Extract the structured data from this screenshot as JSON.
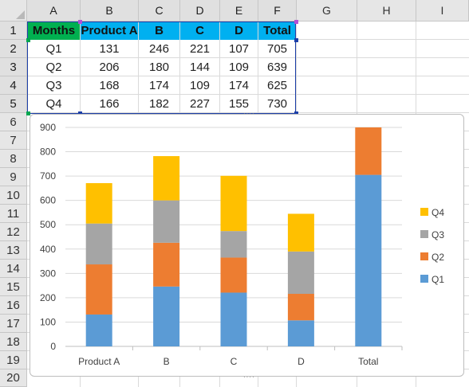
{
  "columns": [
    "A",
    "B",
    "C",
    "D",
    "E",
    "F",
    "G",
    "H",
    "I"
  ],
  "rows": [
    "1",
    "2",
    "3",
    "4",
    "5",
    "6",
    "7",
    "8",
    "9",
    "10",
    "11",
    "12",
    "13",
    "14",
    "15",
    "16",
    "17",
    "18",
    "19",
    "20"
  ],
  "table": {
    "headers": [
      "Months",
      "Product A",
      "B",
      "C",
      "D",
      "Total"
    ],
    "header_colors": [
      "#00b050",
      "#00b0f0",
      "#00b0f0",
      "#00b0f0",
      "#00b0f0",
      "#00b0f0"
    ],
    "rows": [
      [
        "Q1",
        "131",
        "246",
        "221",
        "107",
        "705"
      ],
      [
        "Q2",
        "206",
        "180",
        "144",
        "109",
        "639"
      ],
      [
        "Q3",
        "168",
        "174",
        "109",
        "174",
        "625"
      ],
      [
        "Q4",
        "166",
        "182",
        "227",
        "155",
        "730"
      ]
    ]
  },
  "colors": {
    "Q1": "#5b9bd5",
    "Q2": "#ed7d31",
    "Q3": "#a5a5a5",
    "Q4": "#ffc000",
    "selection_border": "#1c3fa8",
    "header_green": "#00b050",
    "header_blue": "#00b0f0"
  },
  "chart_data": {
    "type": "bar",
    "stacked": true,
    "title": "",
    "xlabel": "",
    "ylabel": "",
    "categories": [
      "Product A",
      "B",
      "C",
      "D",
      "Total"
    ],
    "series": [
      {
        "name": "Q1",
        "values": [
          131,
          246,
          221,
          107,
          705
        ]
      },
      {
        "name": "Q2",
        "values": [
          206,
          180,
          144,
          109,
          195
        ]
      },
      {
        "name": "Q3",
        "values": [
          168,
          174,
          109,
          174,
          0
        ]
      },
      {
        "name": "Q4",
        "values": [
          166,
          182,
          227,
          155,
          0
        ]
      }
    ],
    "ylim": [
      0,
      900
    ],
    "yticks": [
      0,
      100,
      200,
      300,
      400,
      500,
      600,
      700,
      800,
      900
    ],
    "grid": true,
    "legend_position": "right"
  }
}
